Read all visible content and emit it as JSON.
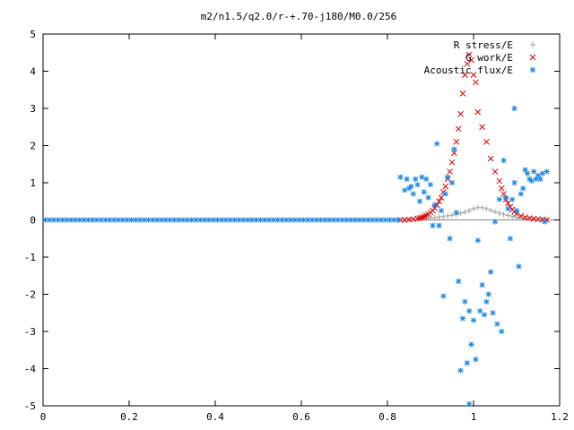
{
  "chart_data": {
    "type": "scatter",
    "title": "m2/n1.5/q2.0/r-+.70-j180/M0.0/256",
    "xlabel": "",
    "ylabel": "",
    "xlim": [
      0,
      1.2
    ],
    "ylim": [
      -5,
      5
    ],
    "x_ticks": [
      "0",
      "0.2",
      "0.4",
      "0.6",
      "0.8",
      "1",
      "1.2"
    ],
    "y_ticks": [
      "5",
      "4",
      "3",
      "2",
      "1",
      "0",
      "-1",
      "-2",
      "-3",
      "-4",
      "-5"
    ],
    "x_tick_values": [
      0,
      0.2,
      0.4,
      0.6,
      0.8,
      1.0,
      1.2
    ],
    "y_tick_values": [
      5,
      4,
      3,
      2,
      1,
      0,
      -1,
      -2,
      -3,
      -4,
      -5
    ],
    "grid": false,
    "legend_position": "top-right",
    "series": [
      {
        "name": "R stress/E",
        "marker": "plus",
        "color": "#a0a0a0",
        "x": [
          0.84,
          0.85,
          0.86,
          0.87,
          0.88,
          0.89,
          0.9,
          0.91,
          0.92,
          0.93,
          0.94,
          0.95,
          0.96,
          0.97,
          0.98,
          0.99,
          1.0,
          1.01,
          1.02,
          1.03,
          1.04,
          1.05,
          1.06,
          1.07,
          1.08,
          1.09,
          1.1,
          1.11,
          1.12,
          1.13,
          1.14,
          1.15,
          1.16,
          1.17
        ],
        "y": [
          0.0,
          0.01,
          0.01,
          0.02,
          0.03,
          0.04,
          0.05,
          0.06,
          0.08,
          0.09,
          0.11,
          0.13,
          0.15,
          0.18,
          0.21,
          0.25,
          0.3,
          0.33,
          0.33,
          0.3,
          0.26,
          0.22,
          0.18,
          0.15,
          0.12,
          0.09,
          0.07,
          0.05,
          0.04,
          0.03,
          0.02,
          0.01,
          0.01,
          0.0
        ]
      },
      {
        "name": "G work/E",
        "marker": "cross",
        "color": "#e00000",
        "x": [
          0.83,
          0.84,
          0.85,
          0.86,
          0.87,
          0.875,
          0.88,
          0.885,
          0.89,
          0.895,
          0.9,
          0.905,
          0.91,
          0.915,
          0.92,
          0.925,
          0.93,
          0.935,
          0.94,
          0.945,
          0.95,
          0.955,
          0.96,
          0.965,
          0.97,
          0.975,
          0.98,
          0.985,
          0.99,
          0.995,
          1.0,
          1.005,
          1.01,
          1.02,
          1.03,
          1.04,
          1.05,
          1.06,
          1.065,
          1.07,
          1.075,
          1.08,
          1.085,
          1.09,
          1.095,
          1.1,
          1.11,
          1.12,
          1.13,
          1.14,
          1.15,
          1.16,
          1.17
        ],
        "y": [
          0.0,
          0.0,
          0.01,
          0.02,
          0.04,
          0.05,
          0.07,
          0.09,
          0.12,
          0.15,
          0.2,
          0.25,
          0.32,
          0.4,
          0.5,
          0.6,
          0.75,
          0.9,
          1.1,
          1.3,
          1.55,
          1.8,
          2.1,
          2.45,
          2.85,
          3.4,
          3.9,
          4.2,
          4.45,
          4.3,
          3.9,
          3.7,
          2.9,
          2.5,
          2.1,
          1.65,
          1.3,
          1.05,
          0.85,
          0.7,
          0.55,
          0.45,
          0.35,
          0.28,
          0.22,
          0.17,
          0.11,
          0.07,
          0.05,
          0.03,
          0.02,
          0.01,
          0.0
        ]
      },
      {
        "name": "Acoustic flux/E",
        "marker": "star",
        "color": "#1e88e5",
        "x": [
          0.005,
          0.015,
          0.025,
          0.035,
          0.045,
          0.055,
          0.065,
          0.075,
          0.085,
          0.095,
          0.105,
          0.115,
          0.125,
          0.135,
          0.145,
          0.155,
          0.165,
          0.175,
          0.185,
          0.195,
          0.205,
          0.215,
          0.225,
          0.235,
          0.245,
          0.255,
          0.265,
          0.275,
          0.285,
          0.295,
          0.305,
          0.315,
          0.325,
          0.335,
          0.345,
          0.355,
          0.365,
          0.375,
          0.385,
          0.395,
          0.405,
          0.415,
          0.425,
          0.435,
          0.445,
          0.455,
          0.465,
          0.475,
          0.485,
          0.495,
          0.505,
          0.515,
          0.525,
          0.535,
          0.545,
          0.555,
          0.565,
          0.575,
          0.585,
          0.595,
          0.605,
          0.615,
          0.625,
          0.635,
          0.645,
          0.655,
          0.665,
          0.675,
          0.685,
          0.695,
          0.705,
          0.715,
          0.725,
          0.735,
          0.745,
          0.755,
          0.765,
          0.775,
          0.785,
          0.795,
          0.805,
          0.815,
          0.825,
          0.83,
          0.84,
          0.845,
          0.85,
          0.855,
          0.86,
          0.865,
          0.87,
          0.875,
          0.88,
          0.885,
          0.89,
          0.895,
          0.9,
          0.905,
          0.91,
          0.915,
          0.92,
          0.925,
          0.93,
          0.935,
          0.94,
          0.945,
          0.95,
          0.955,
          0.96,
          0.965,
          0.97,
          0.975,
          0.98,
          0.985,
          0.99,
          0.995,
          1.0,
          1.005,
          1.01,
          1.015,
          1.02,
          1.025,
          1.03,
          1.035,
          1.04,
          1.045,
          1.05,
          1.055,
          1.06,
          1.065,
          1.07,
          1.075,
          1.08,
          1.085,
          1.09,
          1.095,
          1.1,
          1.105,
          1.11,
          1.115,
          1.12,
          1.125,
          1.13,
          1.135,
          1.14,
          1.145,
          1.15,
          1.155,
          1.16,
          1.165,
          1.17
        ],
        "y": [
          0,
          0,
          0,
          0,
          0,
          0,
          0,
          0,
          0,
          0,
          0,
          0,
          0,
          0,
          0,
          0,
          0,
          0,
          0,
          0,
          0,
          0,
          0,
          0,
          0,
          0,
          0,
          0,
          0,
          0,
          0,
          0,
          0,
          0,
          0,
          0,
          0,
          0,
          0,
          0,
          0,
          0,
          0,
          0,
          0,
          0,
          0,
          0,
          0,
          0,
          0,
          0,
          0,
          0,
          0,
          0,
          0,
          0,
          0,
          0,
          0,
          0,
          0,
          0,
          0,
          0,
          0,
          0,
          0,
          0,
          0,
          0,
          0,
          0,
          0,
          0,
          0,
          0,
          0,
          0,
          0,
          0,
          0,
          1.15,
          0.8,
          1.1,
          0.85,
          0.9,
          0.7,
          1.1,
          0.95,
          0.5,
          1.15,
          0.75,
          1.1,
          0.6,
          0.95,
          -0.15,
          0.4,
          2.05,
          -0.15,
          0.25,
          -2.05,
          0.7,
          1.15,
          -0.5,
          1.0,
          1.9,
          0.2,
          -1.65,
          -4.05,
          -2.65,
          -2.2,
          -3.85,
          -2.45,
          -3.35,
          -2.7,
          -3.75,
          -0.55,
          -2.45,
          -1.75,
          -2.55,
          -2.2,
          -2.0,
          -1.4,
          -2.5,
          -0.05,
          -2.8,
          0.55,
          -3.0,
          1.6,
          0.6,
          0.3,
          -0.5,
          0.55,
          1.0,
          0.25,
          -1.25,
          0.7,
          0.85,
          1.35,
          1.25,
          1.1,
          1.05,
          1.3,
          1.1,
          1.2,
          1.1,
          1.25,
          -0.05,
          1.3
        ],
        "outliers": {
          "x": [
            0.99,
            1.095
          ],
          "y": [
            -4.95,
            3.0
          ]
        }
      }
    ]
  }
}
